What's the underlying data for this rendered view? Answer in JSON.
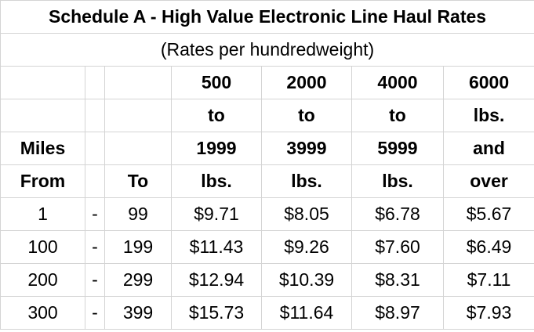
{
  "table": {
    "title": "Schedule A - High Value Electronic Line Haul Rates",
    "subtitle": "(Rates per hundredweight)",
    "header": [
      [
        "Miles",
        "From"
      ],
      [],
      [
        "To"
      ],
      [
        "500",
        "to",
        "1999",
        "lbs."
      ],
      [
        "2000",
        "to",
        "3999",
        "lbs."
      ],
      [
        "4000",
        "to",
        "5999",
        "lbs."
      ],
      [
        "6000",
        "lbs.",
        "and",
        "over"
      ]
    ],
    "rows": [
      [
        "1",
        "-",
        "99",
        "$9.71",
        "$8.05",
        "$6.78",
        "$5.67"
      ],
      [
        "100",
        "-",
        "199",
        "$11.43",
        "$9.26",
        "$7.60",
        "$6.49"
      ],
      [
        "200",
        "-",
        "299",
        "$12.94",
        "$10.39",
        "$8.31",
        "$7.11"
      ],
      [
        "300",
        "-",
        "399",
        "$15.73",
        "$11.64",
        "$8.97",
        "$7.93"
      ]
    ]
  }
}
